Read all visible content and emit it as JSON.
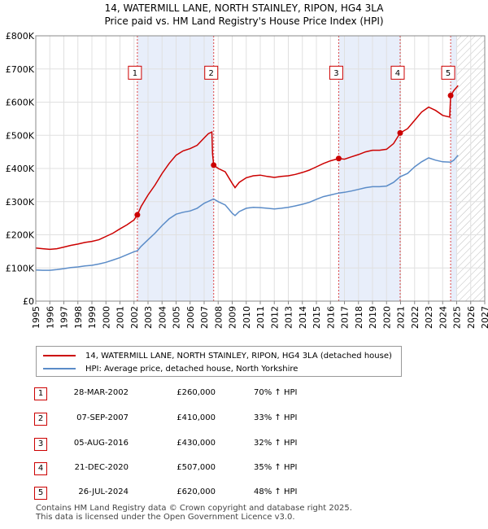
{
  "title_line1": "14, WATERMILL LANE, NORTH STAINLEY, RIPON, HG4 3LA",
  "title_line2": "Price paid vs. HM Land Registry's House Price Index (HPI)",
  "chart_data": {
    "type": "line",
    "xlim": [
      1995,
      2027
    ],
    "ylim": [
      0,
      800000
    ],
    "y_ticks": [
      {
        "value": 0,
        "label": "£0"
      },
      {
        "value": 100000,
        "label": "£100K"
      },
      {
        "value": 200000,
        "label": "£200K"
      },
      {
        "value": 300000,
        "label": "£300K"
      },
      {
        "value": 400000,
        "label": "£400K"
      },
      {
        "value": 500000,
        "label": "£500K"
      },
      {
        "value": 600000,
        "label": "£600K"
      },
      {
        "value": 700000,
        "label": "£700K"
      },
      {
        "value": 800000,
        "label": "£800K"
      }
    ],
    "x_ticks": [
      "1995",
      "1996",
      "1997",
      "1998",
      "1999",
      "2000",
      "2001",
      "2002",
      "2003",
      "2004",
      "2005",
      "2006",
      "2007",
      "2008",
      "2009",
      "2010",
      "2011",
      "2012",
      "2013",
      "2014",
      "2015",
      "2016",
      "2017",
      "2018",
      "2019",
      "2020",
      "2021",
      "2022",
      "2023",
      "2024",
      "2025",
      "2026",
      "2027"
    ],
    "shaded_periods": [
      [
        2002.24,
        2007.68
      ],
      [
        2016.59,
        2020.97
      ],
      [
        2024.57,
        2025.0
      ]
    ],
    "future_hatch_from": 2025.0,
    "series": [
      {
        "name": "14, WATERMILL LANE, NORTH STAINLEY, RIPON, HG4 3LA (detached house)",
        "color": "#cc0000",
        "points": [
          [
            1995.0,
            160000
          ],
          [
            1995.5,
            158000
          ],
          [
            1996.0,
            156000
          ],
          [
            1996.5,
            158000
          ],
          [
            1997.0,
            163000
          ],
          [
            1997.5,
            168000
          ],
          [
            1998.0,
            172000
          ],
          [
            1998.5,
            177000
          ],
          [
            1999.0,
            180000
          ],
          [
            1999.5,
            185000
          ],
          [
            2000.0,
            195000
          ],
          [
            2000.5,
            205000
          ],
          [
            2001.0,
            218000
          ],
          [
            2001.5,
            230000
          ],
          [
            2002.0,
            245000
          ],
          [
            2002.24,
            260000
          ],
          [
            2002.5,
            285000
          ],
          [
            2003.0,
            320000
          ],
          [
            2003.5,
            350000
          ],
          [
            2004.0,
            385000
          ],
          [
            2004.5,
            415000
          ],
          [
            2005.0,
            440000
          ],
          [
            2005.5,
            453000
          ],
          [
            2006.0,
            460000
          ],
          [
            2006.5,
            470000
          ],
          [
            2007.0,
            492000
          ],
          [
            2007.3,
            505000
          ],
          [
            2007.55,
            510000
          ],
          [
            2007.6,
            445000
          ],
          [
            2007.68,
            410000
          ],
          [
            2008.0,
            400000
          ],
          [
            2008.5,
            390000
          ],
          [
            2009.0,
            355000
          ],
          [
            2009.2,
            342000
          ],
          [
            2009.5,
            358000
          ],
          [
            2010.0,
            372000
          ],
          [
            2010.5,
            378000
          ],
          [
            2011.0,
            380000
          ],
          [
            2011.5,
            376000
          ],
          [
            2012.0,
            373000
          ],
          [
            2012.5,
            376000
          ],
          [
            2013.0,
            378000
          ],
          [
            2013.5,
            382000
          ],
          [
            2014.0,
            388000
          ],
          [
            2014.5,
            395000
          ],
          [
            2015.0,
            405000
          ],
          [
            2015.5,
            415000
          ],
          [
            2016.0,
            423000
          ],
          [
            2016.59,
            430000
          ],
          [
            2017.0,
            428000
          ],
          [
            2017.5,
            435000
          ],
          [
            2018.0,
            442000
          ],
          [
            2018.5,
            450000
          ],
          [
            2019.0,
            455000
          ],
          [
            2019.5,
            455000
          ],
          [
            2020.0,
            458000
          ],
          [
            2020.5,
            475000
          ],
          [
            2020.97,
            507000
          ],
          [
            2021.5,
            520000
          ],
          [
            2022.0,
            545000
          ],
          [
            2022.5,
            570000
          ],
          [
            2023.0,
            585000
          ],
          [
            2023.5,
            575000
          ],
          [
            2024.0,
            560000
          ],
          [
            2024.5,
            555000
          ],
          [
            2024.57,
            620000
          ],
          [
            2024.8,
            635000
          ],
          [
            2025.0,
            645000
          ],
          [
            2025.1,
            650000
          ]
        ]
      },
      {
        "name": "HPI: Average price, detached house, North Yorkshire",
        "color": "#5b8cc8",
        "points": [
          [
            1995.0,
            94000
          ],
          [
            1995.5,
            93000
          ],
          [
            1996.0,
            93000
          ],
          [
            1996.5,
            95000
          ],
          [
            1997.0,
            98000
          ],
          [
            1997.5,
            101000
          ],
          [
            1998.0,
            103000
          ],
          [
            1998.5,
            106000
          ],
          [
            1999.0,
            108000
          ],
          [
            1999.5,
            112000
          ],
          [
            2000.0,
            117000
          ],
          [
            2000.5,
            124000
          ],
          [
            2001.0,
            131000
          ],
          [
            2001.5,
            140000
          ],
          [
            2002.0,
            149000
          ],
          [
            2002.24,
            152000
          ],
          [
            2002.5,
            165000
          ],
          [
            2003.0,
            185000
          ],
          [
            2003.5,
            205000
          ],
          [
            2004.0,
            228000
          ],
          [
            2004.5,
            248000
          ],
          [
            2005.0,
            262000
          ],
          [
            2005.5,
            268000
          ],
          [
            2006.0,
            272000
          ],
          [
            2006.5,
            280000
          ],
          [
            2007.0,
            295000
          ],
          [
            2007.68,
            308000
          ],
          [
            2008.0,
            300000
          ],
          [
            2008.5,
            290000
          ],
          [
            2009.0,
            265000
          ],
          [
            2009.2,
            258000
          ],
          [
            2009.5,
            270000
          ],
          [
            2010.0,
            280000
          ],
          [
            2010.5,
            283000
          ],
          [
            2011.0,
            282000
          ],
          [
            2011.5,
            280000
          ],
          [
            2012.0,
            278000
          ],
          [
            2012.5,
            280000
          ],
          [
            2013.0,
            283000
          ],
          [
            2013.5,
            287000
          ],
          [
            2014.0,
            292000
          ],
          [
            2014.5,
            298000
          ],
          [
            2015.0,
            307000
          ],
          [
            2015.5,
            315000
          ],
          [
            2016.0,
            320000
          ],
          [
            2016.59,
            326000
          ],
          [
            2017.0,
            328000
          ],
          [
            2017.5,
            332000
          ],
          [
            2018.0,
            337000
          ],
          [
            2018.5,
            342000
          ],
          [
            2019.0,
            345000
          ],
          [
            2019.5,
            345000
          ],
          [
            2020.0,
            347000
          ],
          [
            2020.5,
            358000
          ],
          [
            2020.97,
            375000
          ],
          [
            2021.5,
            385000
          ],
          [
            2022.0,
            405000
          ],
          [
            2022.5,
            420000
          ],
          [
            2023.0,
            432000
          ],
          [
            2023.5,
            425000
          ],
          [
            2024.0,
            420000
          ],
          [
            2024.57,
            419000
          ],
          [
            2024.8,
            425000
          ],
          [
            2025.0,
            435000
          ],
          [
            2025.1,
            440000
          ]
        ]
      }
    ],
    "markers": [
      {
        "label": "1",
        "x": 2002.24,
        "y": 260000
      },
      {
        "label": "2",
        "x": 2007.68,
        "y": 410000
      },
      {
        "label": "3",
        "x": 2016.59,
        "y": 430000
      },
      {
        "label": "4",
        "x": 2020.97,
        "y": 507000
      },
      {
        "label": "5",
        "x": 2024.57,
        "y": 620000
      }
    ],
    "marker_label_y": 690000
  },
  "legend": {
    "red_label": "14, WATERMILL LANE, NORTH STAINLEY, RIPON, HG4 3LA (detached house)",
    "blue_label": "HPI: Average price, detached house, North Yorkshire"
  },
  "transactions": [
    {
      "num": "1",
      "date": "28-MAR-2002",
      "price": "£260,000",
      "hpi": "70% ↑ HPI"
    },
    {
      "num": "2",
      "date": "07-SEP-2007",
      "price": "£410,000",
      "hpi": "33% ↑ HPI"
    },
    {
      "num": "3",
      "date": "05-AUG-2016",
      "price": "£430,000",
      "hpi": "32% ↑ HPI"
    },
    {
      "num": "4",
      "date": "21-DEC-2020",
      "price": "£507,000",
      "hpi": "35% ↑ HPI"
    },
    {
      "num": "5",
      "date": "26-JUL-2024",
      "price": "£620,000",
      "hpi": "48% ↑ HPI"
    }
  ],
  "footer": {
    "line1": "Contains HM Land Registry data © Crown copyright and database right 2025.",
    "line2": "This data is licensed under the Open Government Licence v3.0."
  }
}
